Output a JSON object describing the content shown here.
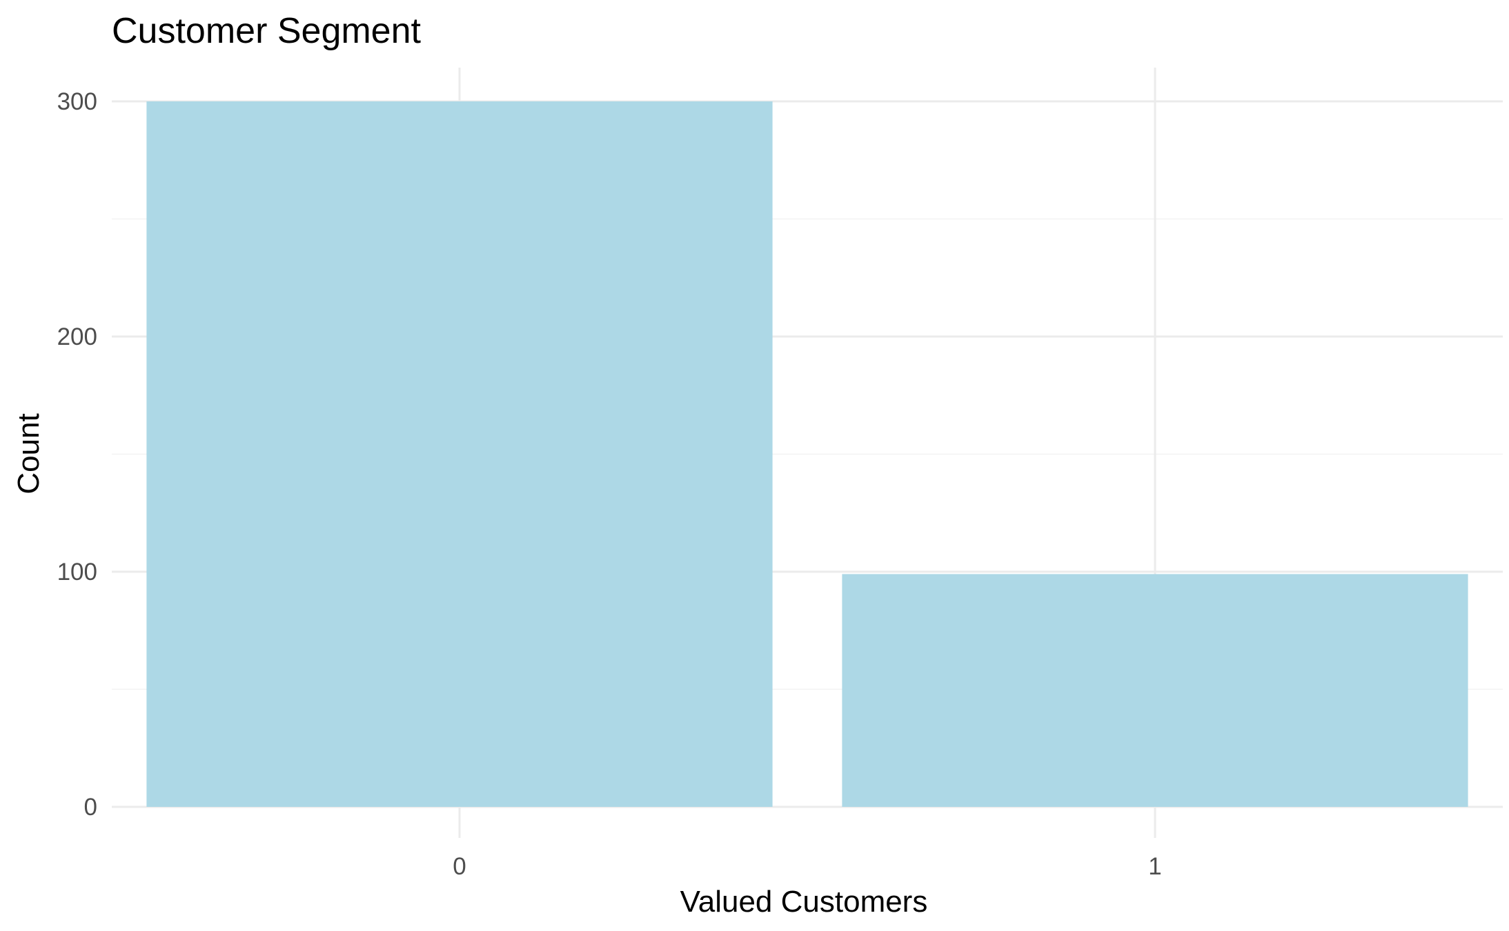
{
  "chart_data": {
    "type": "bar",
    "title": "Customer Segment",
    "xlabel": "Valued Customers",
    "ylabel": "Count",
    "categories": [
      "0",
      "1"
    ],
    "values": [
      300,
      99
    ],
    "ylim": [
      0,
      300
    ],
    "y_ticks": [
      0,
      100,
      200,
      300
    ],
    "grid": true,
    "legend": "none",
    "colors": {
      "bar": "#add8e6",
      "grid_major": "#ebebeb",
      "grid_minor": "#f2f2f2",
      "background": "#ffffff"
    }
  }
}
